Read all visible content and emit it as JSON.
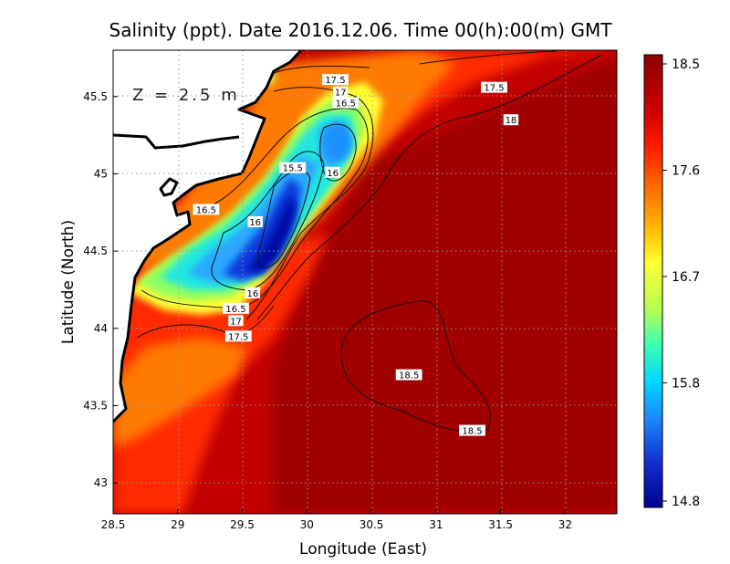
{
  "chart_data": {
    "type": "heatmap",
    "title": "Salinity (ppt). Date 2016.12.06. Time 00(h):00(m) GMT",
    "xlabel": "Longitude (East)",
    "ylabel": "Latitude (North)",
    "xlim": [
      28.5,
      32.4
    ],
    "ylim": [
      42.8,
      45.8
    ],
    "x_ticks": [
      "28.5",
      "29",
      "29.5",
      "30",
      "30.5",
      "31",
      "31.5",
      "32"
    ],
    "y_ticks": [
      "43",
      "43.5",
      "44",
      "44.5",
      "45",
      "45.5"
    ],
    "grid": true,
    "annotation": "Z = 2.5 m",
    "colorbar": {
      "min": 14.8,
      "max": 18.5,
      "tick_labels": [
        "18.5",
        "17.6",
        "16.7",
        "15.8",
        "14.8"
      ],
      "colors": [
        "#8b0000",
        "#cc0000",
        "#ff2000",
        "#ff6a00",
        "#ffb000",
        "#ffff33",
        "#b5ff50",
        "#40ffb0",
        "#00d8ff",
        "#1a8cff",
        "#1030d0",
        "#000090"
      ]
    },
    "contour_labels": [
      {
        "value": 17.5,
        "lon": 30.22,
        "lat": 45.61
      },
      {
        "value": 17.5,
        "lon": 31.45,
        "lat": 45.56
      },
      {
        "value": 17,
        "lon": 30.26,
        "lat": 45.53
      },
      {
        "value": 16.5,
        "lon": 30.3,
        "lat": 45.46
      },
      {
        "value": 18,
        "lon": 31.58,
        "lat": 45.35
      },
      {
        "value": 15.5,
        "lon": 29.89,
        "lat": 45.04
      },
      {
        "value": 16,
        "lon": 30.2,
        "lat": 45.01
      },
      {
        "value": 16.5,
        "lon": 29.22,
        "lat": 44.77
      },
      {
        "value": 16,
        "lon": 29.6,
        "lat": 44.69
      },
      {
        "value": 16,
        "lon": 29.58,
        "lat": 44.23
      },
      {
        "value": 16.5,
        "lon": 29.45,
        "lat": 44.13
      },
      {
        "value": 17,
        "lon": 29.45,
        "lat": 44.05
      },
      {
        "value": 17.5,
        "lon": 29.47,
        "lat": 43.95
      },
      {
        "value": 18.5,
        "lon": 30.79,
        "lat": 43.7
      },
      {
        "value": 18.5,
        "lon": 31.28,
        "lat": 43.34
      }
    ],
    "features": {
      "low_salinity_core": {
        "lon": 29.7,
        "lat": 44.5,
        "min_value": 14.8
      },
      "secondary_low": {
        "lon": 30.22,
        "lat": 45.22,
        "value": 15.9
      },
      "high_salinity_pool": {
        "lon": 30.95,
        "lat": 43.6,
        "value": 18.5
      }
    }
  }
}
